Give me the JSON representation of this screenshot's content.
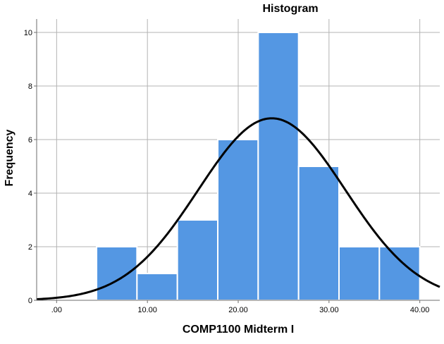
{
  "chart_data": {
    "type": "bar",
    "title": "Histogram",
    "xlabel": "COMP1100 Midterm I",
    "ylabel": "Frequency",
    "x_ticks": [
      ".00",
      "10.00",
      "20.00",
      "30.00",
      "40.00"
    ],
    "x_tick_values": [
      0,
      10,
      20,
      30,
      40
    ],
    "y_ticks": [
      "0",
      "2",
      "4",
      "6",
      "8",
      "10"
    ],
    "y_tick_values": [
      0,
      2,
      4,
      6,
      8,
      10
    ],
    "xlim": [
      -2.2,
      42.2
    ],
    "ylim": [
      0,
      10.5
    ],
    "bins": [
      {
        "start": 4.4,
        "end": 8.85,
        "value": 2
      },
      {
        "start": 8.85,
        "end": 13.3,
        "value": 1
      },
      {
        "start": 13.3,
        "end": 17.75,
        "value": 3
      },
      {
        "start": 17.75,
        "end": 22.2,
        "value": 6
      },
      {
        "start": 22.2,
        "end": 26.65,
        "value": 10
      },
      {
        "start": 26.65,
        "end": 31.1,
        "value": 5
      },
      {
        "start": 31.1,
        "end": 35.55,
        "value": 2
      },
      {
        "start": 35.55,
        "end": 40.0,
        "value": 2
      }
    ],
    "normal_curve": {
      "mean": 23.7,
      "sd": 8.1,
      "n": 31,
      "bin_width": 4.45
    },
    "grid": true,
    "colors": {
      "bar_fill": "#5497e3",
      "bar_stroke": "#ffffff",
      "curve": "#000000",
      "grid": "#b3b3b3",
      "axis": "#6e6e6e",
      "background": "#ffffff"
    }
  }
}
